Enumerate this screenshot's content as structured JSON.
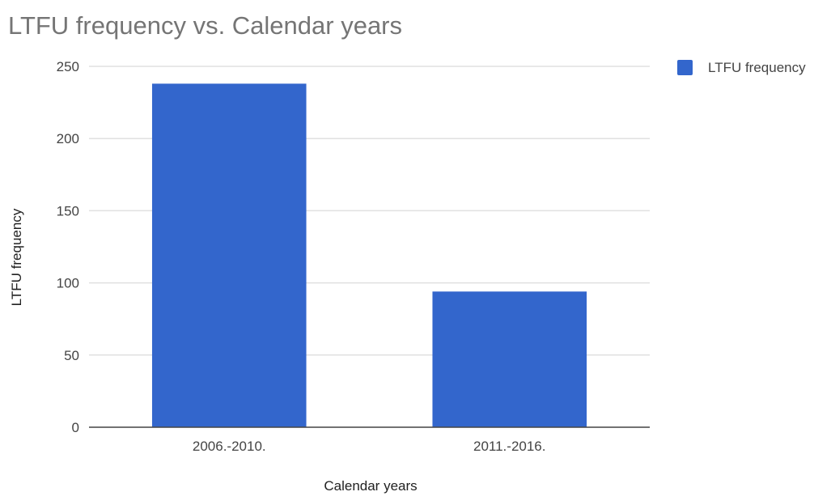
{
  "chart_data": {
    "type": "bar",
    "title": "LTFU frequency vs. Calendar years",
    "xlabel": "Calendar years",
    "ylabel": "LTFU frequency",
    "categories": [
      "2006.-2010.",
      "2011.-2016."
    ],
    "series": [
      {
        "name": "LTFU frequency",
        "values": [
          238,
          94
        ],
        "color": "#3366cc"
      }
    ],
    "yticks": [
      "0",
      "50",
      "100",
      "150",
      "200",
      "250"
    ],
    "ylim": [
      0,
      250
    ],
    "grid": true,
    "legend_position": "right"
  }
}
